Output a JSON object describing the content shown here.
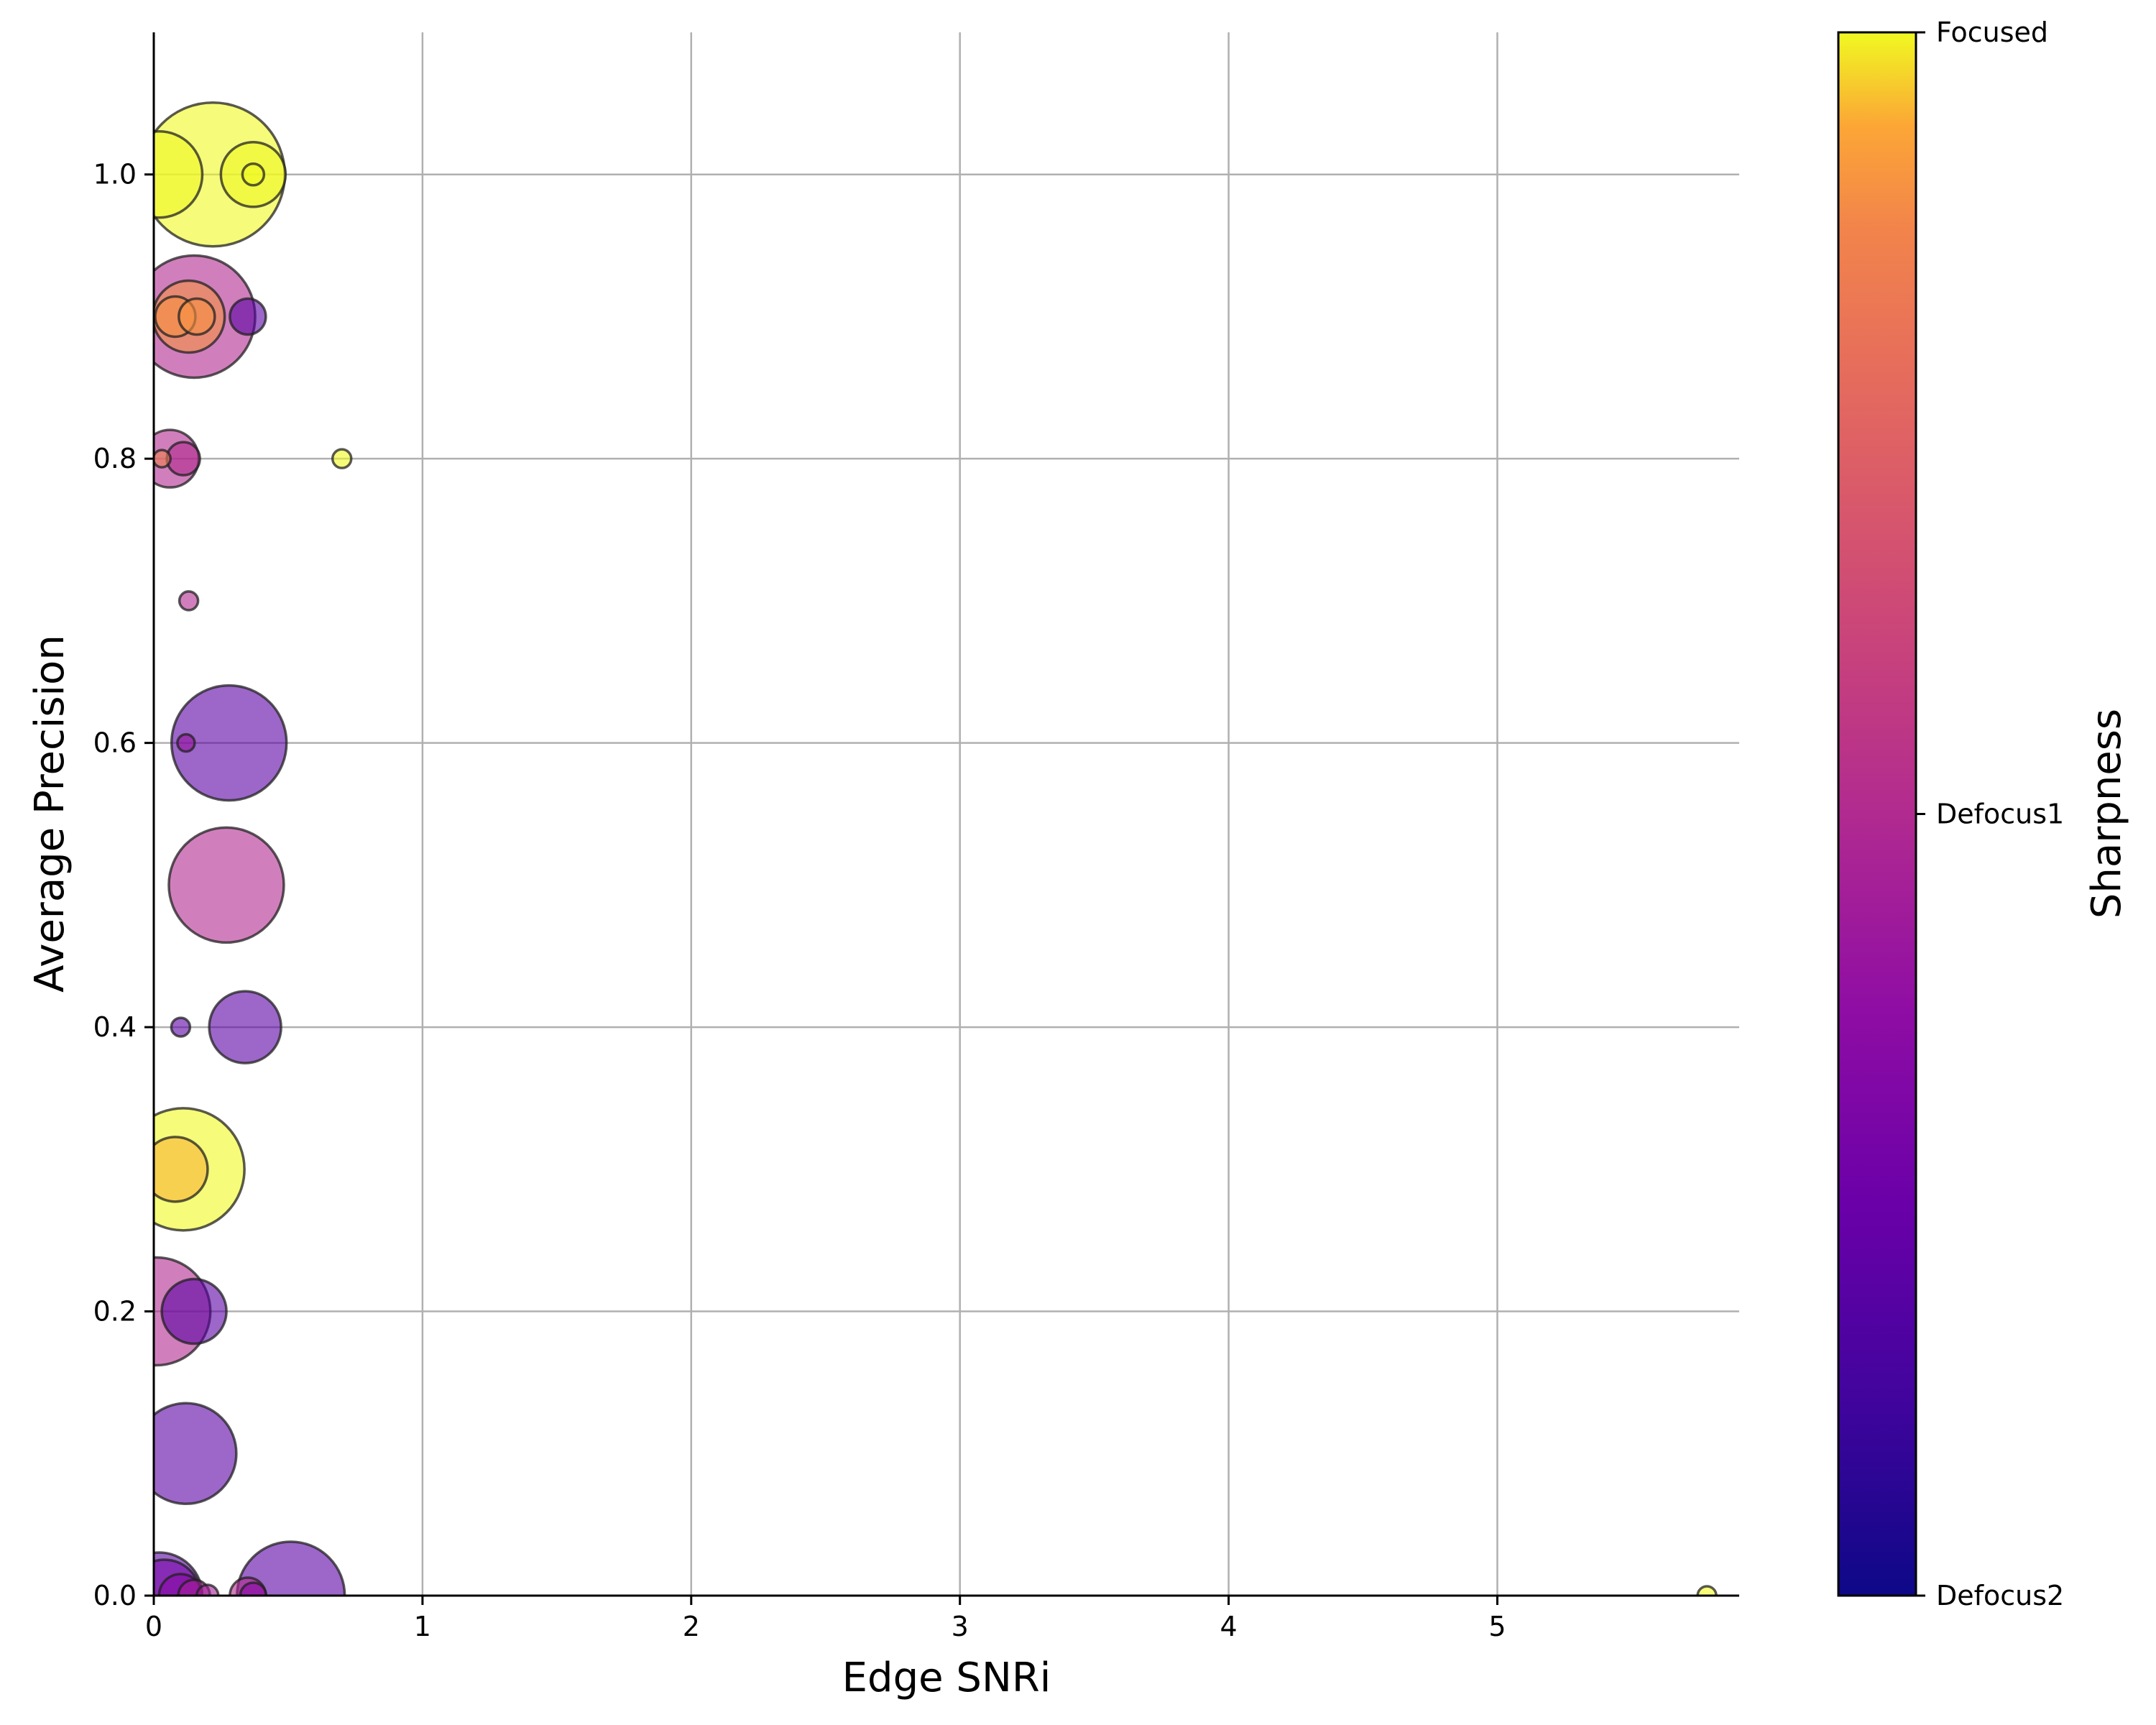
{
  "chart_data": {
    "type": "scatter",
    "title": "",
    "xlabel": "Edge SNRi",
    "ylabel": "Average Precision",
    "xlim": [
      0,
      5.9
    ],
    "ylim": [
      0,
      1.1
    ],
    "x_ticks": [
      0,
      1,
      2,
      3,
      4,
      5
    ],
    "y_ticks": [
      0.0,
      0.2,
      0.4,
      0.6,
      0.8,
      1.0
    ],
    "x_tick_labels": [
      "0",
      "1",
      "2",
      "3",
      "4",
      "5"
    ],
    "y_tick_labels": [
      "0.0",
      "0.2",
      "0.4",
      "0.6",
      "0.8",
      "1.0"
    ],
    "grid": true,
    "colormap": "plasma",
    "colorbar": {
      "label": "Sharpness",
      "ticks": [
        {
          "value": 0,
          "label": "Defocus2"
        },
        {
          "value": 1,
          "label": "Defocus1"
        },
        {
          "value": 2,
          "label": "Focused"
        }
      ]
    },
    "points": [
      {
        "x": 0.02,
        "y": 1.0,
        "size": 60,
        "c": 2
      },
      {
        "x": 0.22,
        "y": 1.0,
        "size": 100,
        "c": 2
      },
      {
        "x": 0.37,
        "y": 1.0,
        "size": 45,
        "c": 2
      },
      {
        "x": 0.37,
        "y": 1.0,
        "size": 15,
        "c": 2
      },
      {
        "x": 0.15,
        "y": 0.9,
        "size": 85,
        "c": 1
      },
      {
        "x": 0.13,
        "y": 0.9,
        "size": 50,
        "c": 1.8
      },
      {
        "x": 0.08,
        "y": 0.9,
        "size": 28,
        "c": 1.8
      },
      {
        "x": 0.16,
        "y": 0.9,
        "size": 25,
        "c": 1.8
      },
      {
        "x": 0.35,
        "y": 0.9,
        "size": 25,
        "c": 0.4
      },
      {
        "x": 0.06,
        "y": 0.8,
        "size": 40,
        "c": 1
      },
      {
        "x": 0.11,
        "y": 0.8,
        "size": 23,
        "c": 1
      },
      {
        "x": 0.03,
        "y": 0.8,
        "size": 12,
        "c": 1.7
      },
      {
        "x": 0.7,
        "y": 0.8,
        "size": 13,
        "c": 2
      },
      {
        "x": 0.13,
        "y": 0.7,
        "size": 13,
        "c": 1
      },
      {
        "x": 0.28,
        "y": 0.6,
        "size": 80,
        "c": 0.4
      },
      {
        "x": 0.12,
        "y": 0.6,
        "size": 12,
        "c": 0.8
      },
      {
        "x": 0.27,
        "y": 0.5,
        "size": 80,
        "c": 1
      },
      {
        "x": 0.34,
        "y": 0.4,
        "size": 50,
        "c": 0.4
      },
      {
        "x": 0.1,
        "y": 0.4,
        "size": 13,
        "c": 0.4
      },
      {
        "x": 0.11,
        "y": 0.3,
        "size": 85,
        "c": 2
      },
      {
        "x": 0.08,
        "y": 0.3,
        "size": 45,
        "c": 1.9
      },
      {
        "x": 0.01,
        "y": 0.2,
        "size": 75,
        "c": 1
      },
      {
        "x": 0.15,
        "y": 0.2,
        "size": 45,
        "c": 0.4
      },
      {
        "x": 0.12,
        "y": 0.1,
        "size": 70,
        "c": 0.4
      },
      {
        "x": 0.51,
        "y": 0.0,
        "size": 75,
        "c": 0.4
      },
      {
        "x": 0.02,
        "y": 0.0,
        "size": 60,
        "c": 0.4
      },
      {
        "x": 0.04,
        "y": 0.0,
        "size": 50,
        "c": 0.6
      },
      {
        "x": 0.1,
        "y": 0.0,
        "size": 30,
        "c": 0.7
      },
      {
        "x": 0.15,
        "y": 0.0,
        "size": 22,
        "c": 0.9
      },
      {
        "x": 0.2,
        "y": 0.0,
        "size": 15,
        "c": 0.9
      },
      {
        "x": 0.35,
        "y": 0.0,
        "size": 25,
        "c": 1
      },
      {
        "x": 0.37,
        "y": 0.0,
        "size": 18,
        "c": 0.7
      },
      {
        "x": 5.78,
        "y": 0.0,
        "size": 13,
        "c": 2
      }
    ]
  }
}
